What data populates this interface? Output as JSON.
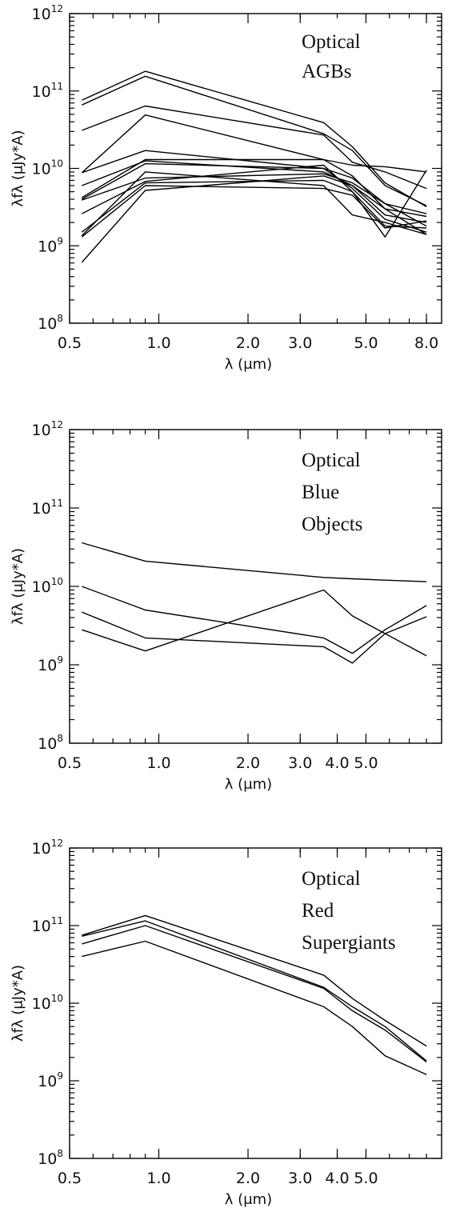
{
  "chart_data": [
    {
      "type": "line",
      "xscale": "log",
      "yscale": "log",
      "xlim": [
        0.5,
        9.0
      ],
      "ylim": [
        100000000.0,
        1000000000000.0
      ],
      "xticks": [
        {
          "value": 0.5,
          "label": "0.5"
        },
        {
          "value": 1.0,
          "label": "1.0"
        },
        {
          "value": 2.0,
          "label": "2.0"
        },
        {
          "value": 3.0,
          "label": "3.0"
        },
        {
          "value": 5.0,
          "label": "5.0"
        },
        {
          "value": 8.0,
          "label": "8.0"
        }
      ],
      "yticks": [
        {
          "value": 100000000.0,
          "base": "10",
          "exp": "8"
        },
        {
          "value": 1000000000.0,
          "base": "10",
          "exp": "9"
        },
        {
          "value": 10000000000.0,
          "base": "10",
          "exp": "10"
        },
        {
          "value": 100000000000.0,
          "base": "10",
          "exp": "11"
        },
        {
          "value": 1000000000000.0,
          "base": "10",
          "exp": "12"
        }
      ],
      "xlabel": "λ (μm)",
      "ylabel": "λfλ  (μJy*A)",
      "annotation": [
        "Optical",
        "AGBs"
      ],
      "grid": false,
      "x": [
        0.55,
        0.9,
        3.6,
        4.5,
        5.8,
        8.0
      ],
      "series": [
        {
          "values": [
            76000000000.0,
            180000000000.0,
            39000000000.0,
            19000000000.0,
            6500000000.0,
            3200000000.0
          ]
        },
        {
          "values": [
            66000000000.0,
            155000000000.0,
            28000000000.0,
            17000000000.0,
            6000000000.0,
            3300000000.0
          ]
        },
        {
          "values": [
            31000000000.0,
            64000000000.0,
            27000000000.0,
            12000000000.0,
            9000000000.0,
            5500000000.0
          ]
        },
        {
          "values": [
            8800000000.0,
            49000000000.0,
            13000000000.0,
            11000000000.0,
            10500000000.0,
            9000000000.0
          ]
        },
        {
          "values": [
            8800000000.0,
            17000000000.0,
            10000000000.0,
            7500000000.0,
            3500000000.0,
            1800000000.0
          ]
        },
        {
          "values": [
            6000000000.0,
            12500000000.0,
            9000000000.0,
            6000000000.0,
            2500000000.0,
            2000000000.0
          ]
        },
        {
          "values": [
            4200000000.0,
            13000000000.0,
            13000000000.0,
            8000000000.0,
            3000000000.0,
            2400000000.0
          ]
        },
        {
          "values": [
            4000000000.0,
            11500000000.0,
            10000000000.0,
            5500000000.0,
            2200000000.0,
            1500000000.0
          ]
        },
        {
          "values": [
            3900000000.0,
            7500000000.0,
            8500000000.0,
            6500000000.0,
            3500000000.0,
            2600000000.0
          ]
        },
        {
          "values": [
            2600000000.0,
            6800000000.0,
            11000000000.0,
            5000000000.0,
            1300000000.0,
            9500000000.0
          ]
        },
        {
          "values": [
            1500000000.0,
            6500000000.0,
            7000000000.0,
            5000000000.0,
            1800000000.0,
            1700000000.0
          ]
        },
        {
          "values": [
            1350000000.0,
            9000000000.0,
            6000000000.0,
            2500000000.0,
            2000000000.0,
            1400000000.0
          ]
        },
        {
          "values": [
            1300000000.0,
            6000000000.0,
            5500000000.0,
            4500000000.0,
            1700000000.0,
            2100000000.0
          ]
        },
        {
          "values": [
            610000000.0,
            5200000000.0,
            8000000000.0,
            6000000000.0,
            3000000000.0,
            1400000000.0
          ]
        }
      ]
    },
    {
      "type": "line",
      "xscale": "log",
      "yscale": "log",
      "xlim": [
        0.5,
        9.0
      ],
      "ylim": [
        100000000.0,
        1000000000000.0
      ],
      "xticks": [
        {
          "value": 0.5,
          "label": "0.5"
        },
        {
          "value": 1.0,
          "label": "1.0"
        },
        {
          "value": 2.0,
          "label": "2.0"
        },
        {
          "value": 3.0,
          "label": "3.0"
        },
        {
          "value": 4.0,
          "label": "4.0"
        },
        {
          "value": 5.0,
          "label": "5.0"
        }
      ],
      "yticks": [
        {
          "value": 100000000.0,
          "base": "10",
          "exp": "8"
        },
        {
          "value": 1000000000.0,
          "base": "10",
          "exp": "9"
        },
        {
          "value": 10000000000.0,
          "base": "10",
          "exp": "10"
        },
        {
          "value": 100000000000.0,
          "base": "10",
          "exp": "11"
        },
        {
          "value": 1000000000000.0,
          "base": "10",
          "exp": "12"
        }
      ],
      "xlabel": "λ (μm)",
      "ylabel": "λfλ  (μJy*A)",
      "annotation": [
        "Optical",
        "Blue",
        "Objects"
      ],
      "grid": false,
      "x": [
        0.55,
        0.9,
        3.6,
        4.5,
        5.8,
        8.0
      ],
      "series": [
        {
          "values": [
            36000000000.0,
            21000000000.0,
            13000000000.0,
            12500000000.0,
            12000000000.0,
            11500000000.0
          ]
        },
        {
          "values": [
            10000000000.0,
            5000000000.0,
            2200000000.0,
            1400000000.0,
            2800000000.0,
            5700000000.0
          ]
        },
        {
          "values": [
            4700000000.0,
            2200000000.0,
            1700000000.0,
            1050000000.0,
            2500000000.0,
            4100000000.0
          ]
        },
        {
          "values": [
            2800000000.0,
            1500000000.0,
            9000000000.0,
            4200000000.0,
            2500000000.0,
            1300000000.0
          ]
        }
      ]
    },
    {
      "type": "line",
      "xscale": "log",
      "yscale": "log",
      "xlim": [
        0.5,
        9.0
      ],
      "ylim": [
        100000000.0,
        1000000000000.0
      ],
      "xticks": [
        {
          "value": 0.5,
          "label": "0.5"
        },
        {
          "value": 1.0,
          "label": "1.0"
        },
        {
          "value": 2.0,
          "label": "2.0"
        },
        {
          "value": 3.0,
          "label": "3.0"
        },
        {
          "value": 4.0,
          "label": "4.0"
        },
        {
          "value": 5.0,
          "label": "5.0"
        }
      ],
      "yticks": [
        {
          "value": 100000000.0,
          "base": "10",
          "exp": "8"
        },
        {
          "value": 1000000000.0,
          "base": "10",
          "exp": "9"
        },
        {
          "value": 10000000000.0,
          "base": "10",
          "exp": "10"
        },
        {
          "value": 100000000000.0,
          "base": "10",
          "exp": "11"
        },
        {
          "value": 1000000000000.0,
          "base": "10",
          "exp": "12"
        }
      ],
      "xlabel": "λ (μm)",
      "ylabel": "λfλ  (μJy*A)",
      "annotation": [
        "Optical",
        "Red",
        "Supergiants"
      ],
      "grid": false,
      "x": [
        0.55,
        0.9,
        3.6,
        4.5,
        5.8,
        8.0
      ],
      "series": [
        {
          "values": [
            75000000000.0,
            135000000000.0,
            23000000000.0,
            11500000000.0,
            6000000000.0,
            2800000000.0
          ]
        },
        {
          "values": [
            73000000000.0,
            115000000000.0,
            16000000000.0,
            9000000000.0,
            5000000000.0,
            1800000000.0
          ]
        },
        {
          "values": [
            58000000000.0,
            100000000000.0,
            15500000000.0,
            8000000000.0,
            4500000000.0,
            1750000000.0
          ]
        },
        {
          "values": [
            40000000000.0,
            63000000000.0,
            9000000000.0,
            5000000000.0,
            2100000000.0,
            1200000000.0
          ]
        }
      ]
    }
  ]
}
